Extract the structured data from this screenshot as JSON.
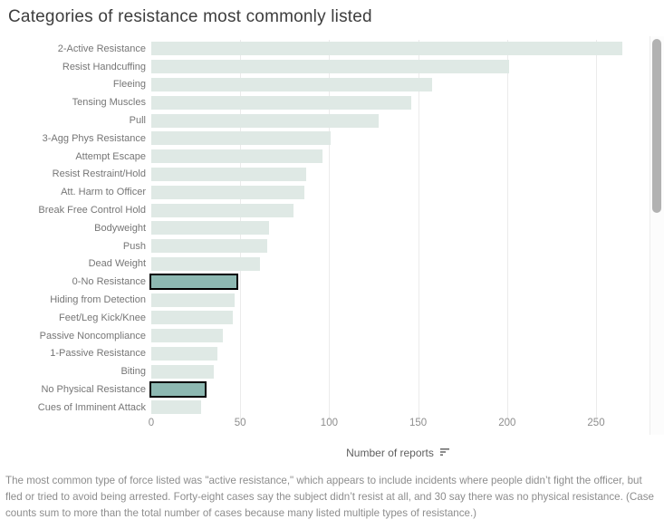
{
  "title": "Categories of resistance most commonly listed",
  "chart_data": {
    "type": "bar",
    "orientation": "horizontal",
    "title": "Categories of resistance most commonly listed",
    "xlabel": "Number of reports",
    "xticks": [
      0,
      50,
      100,
      150,
      200,
      250
    ],
    "xlim": [
      0,
      278
    ],
    "grid": "vertical-light",
    "legend": "none",
    "categories": [
      "2-Active Resistance",
      "Resist Handcuffing",
      "Fleeing",
      "Tensing Muscles",
      "Pull",
      "3-Agg Phys Resistance",
      "Attempt Escape",
      "Resist Restraint/Hold",
      "Att. Harm to Officer",
      "Break Free Control Hold",
      "Bodyweight",
      "Push",
      "Dead Weight",
      "0-No Resistance",
      "Hiding from Detection",
      "Feet/Leg Kick/Knee",
      "Passive Noncompliance",
      "1-Passive Resistance",
      "Biting",
      "No Physical Resistance",
      "Cues of Imminent Attack"
    ],
    "values": [
      265,
      201,
      158,
      146,
      128,
      101,
      96,
      87,
      86,
      80,
      66,
      65,
      61,
      48,
      47,
      46,
      40,
      37,
      35,
      30,
      28
    ],
    "highlighted_categories": [
      "0-No Resistance",
      "No Physical Resistance"
    ],
    "colors": {
      "bar": "#dfe9e5",
      "highlight_fill": "#8db8b1",
      "highlight_border": "#000000",
      "gridline": "#ebebeb",
      "tick_text": "#8e8e8e",
      "category_text": "#767676"
    }
  },
  "axis": {
    "xlabel": "Number of reports",
    "sort_icon": "sort-descending-icon"
  },
  "footer": {
    "text": "The most common type of force listed was \"active resistance,\" which appears to include incidents where people didn’t fight the officer, but fled or tried to avoid being arrested. Forty-eight cases say the subject didn’t resist at all, and 30 say there was no physical resistance. (Case counts sum to more than the total number of cases because many listed multiple types of resistance.)"
  },
  "scrollbar": {
    "present": true
  }
}
